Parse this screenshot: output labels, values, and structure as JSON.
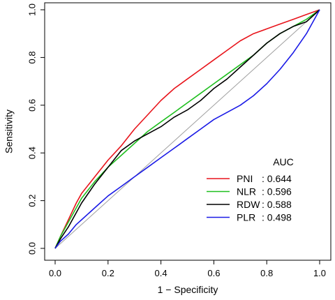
{
  "chart_data": {
    "type": "line",
    "xlabel": "1 − Specificity",
    "ylabel": "Sensitivity",
    "xlim": [
      0,
      1
    ],
    "ylim": [
      0,
      1
    ],
    "x_ticks": [
      "0.0",
      "0.2",
      "0.4",
      "0.6",
      "0.8",
      "1.0"
    ],
    "y_ticks": [
      "0.0",
      "0.2",
      "0.4",
      "0.6",
      "0.8",
      "1.0"
    ],
    "grid": false,
    "legend": {
      "title": "AUC",
      "position": "bottom-right"
    },
    "reference_line": {
      "color": "#a0a0a0",
      "from": [
        0,
        0
      ],
      "to": [
        1,
        1
      ]
    },
    "series": [
      {
        "name": "PNI",
        "auc_label": ": 0.644",
        "color": "#e8141b",
        "x": [
          0,
          0.02,
          0.05,
          0.08,
          0.1,
          0.15,
          0.2,
          0.25,
          0.3,
          0.35,
          0.4,
          0.45,
          0.5,
          0.55,
          0.6,
          0.65,
          0.7,
          0.75,
          0.8,
          0.85,
          0.9,
          0.95,
          1.0
        ],
        "y": [
          0,
          0.05,
          0.12,
          0.19,
          0.23,
          0.3,
          0.37,
          0.43,
          0.5,
          0.56,
          0.62,
          0.67,
          0.71,
          0.75,
          0.79,
          0.83,
          0.87,
          0.9,
          0.92,
          0.94,
          0.96,
          0.98,
          1.0
        ]
      },
      {
        "name": "NLR",
        "auc_label": ": 0.596",
        "color": "#1fbf1f",
        "x": [
          0,
          0.02,
          0.05,
          0.08,
          0.1,
          0.15,
          0.2,
          0.25,
          0.3,
          0.35,
          0.4,
          0.45,
          0.5,
          0.55,
          0.6,
          0.65,
          0.7,
          0.75,
          0.8,
          0.85,
          0.9,
          0.95,
          1.0
        ],
        "y": [
          0,
          0.05,
          0.11,
          0.17,
          0.21,
          0.28,
          0.34,
          0.39,
          0.44,
          0.49,
          0.53,
          0.57,
          0.61,
          0.65,
          0.69,
          0.73,
          0.77,
          0.81,
          0.86,
          0.9,
          0.93,
          0.96,
          1.0
        ]
      },
      {
        "name": "RDW",
        "auc_label": ": 0.588",
        "color": "#000000",
        "x": [
          0,
          0.02,
          0.05,
          0.08,
          0.1,
          0.15,
          0.2,
          0.25,
          0.3,
          0.35,
          0.4,
          0.45,
          0.5,
          0.55,
          0.6,
          0.65,
          0.7,
          0.75,
          0.8,
          0.85,
          0.9,
          0.95,
          1.0
        ],
        "y": [
          0,
          0.04,
          0.09,
          0.15,
          0.19,
          0.27,
          0.34,
          0.41,
          0.45,
          0.48,
          0.51,
          0.55,
          0.58,
          0.62,
          0.67,
          0.71,
          0.76,
          0.81,
          0.86,
          0.9,
          0.93,
          0.95,
          1.0
        ]
      },
      {
        "name": "PLR",
        "auc_label": ": 0.498",
        "color": "#1a1ae6",
        "x": [
          0,
          0.02,
          0.05,
          0.08,
          0.1,
          0.15,
          0.2,
          0.25,
          0.3,
          0.35,
          0.4,
          0.45,
          0.5,
          0.55,
          0.6,
          0.65,
          0.7,
          0.75,
          0.8,
          0.85,
          0.9,
          0.95,
          1.0
        ],
        "y": [
          0,
          0.03,
          0.06,
          0.1,
          0.12,
          0.17,
          0.22,
          0.26,
          0.3,
          0.34,
          0.38,
          0.42,
          0.46,
          0.5,
          0.54,
          0.57,
          0.6,
          0.64,
          0.69,
          0.75,
          0.82,
          0.9,
          1.0
        ]
      }
    ]
  }
}
